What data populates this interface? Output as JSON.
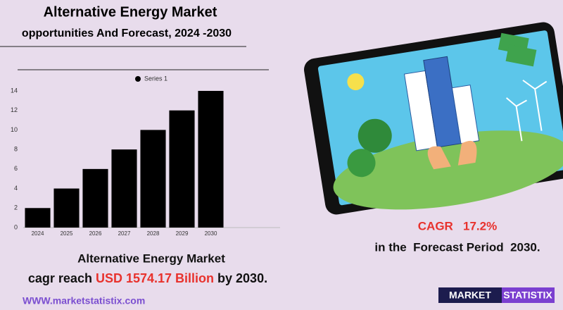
{
  "header": {
    "title": "Alternative Energy Market",
    "subtitle": "opportunities And Forecast, 2024 -2030"
  },
  "chart_data": {
    "type": "bar",
    "categories": [
      "2024",
      "2025",
      "2026",
      "2027",
      "2028",
      "2029",
      "2030"
    ],
    "series": [
      {
        "name": "Series 1",
        "color": "#000000",
        "values": [
          2,
          4,
          6,
          8,
          10,
          12,
          14
        ]
      }
    ],
    "ylim": [
      0,
      14
    ],
    "yticks": [
      0,
      2,
      4,
      6,
      8,
      10,
      12,
      14
    ],
    "grid": false,
    "legend": "top"
  },
  "cagr": {
    "label": "CAGR   17.2%",
    "period": "in the  Forecast Period  2030."
  },
  "summary": {
    "line1": "Alternative Energy Market",
    "prefix": "cagr reach ",
    "highlight": "USD 1574.17 Billion",
    "suffix": " by 2030."
  },
  "footer": {
    "website": "WWW.marketstatistix.com",
    "logo_left": "MARKET",
    "logo_right": "STATISTIX"
  }
}
